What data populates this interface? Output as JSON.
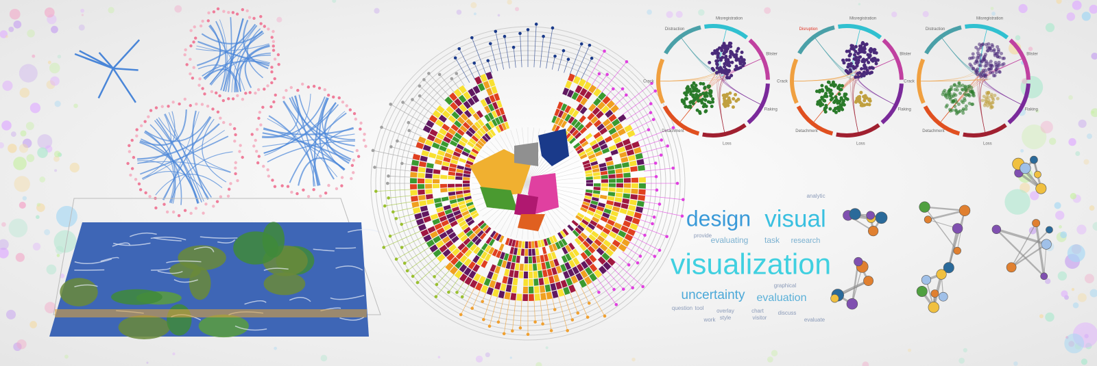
{
  "word_cloud": {
    "words": [
      "analytic",
      "design",
      "visual",
      "provide",
      "evaluating",
      "task",
      "research",
      "visualization",
      "graphical",
      "uncertainty",
      "evaluation",
      "question",
      "tool",
      "overlay",
      "chart",
      "discuss",
      "work",
      "style",
      "visitor",
      "evaluate"
    ]
  },
  "chord_diagrams": [
    {
      "labels": [
        "Distraction",
        "Misregistration",
        "Blister",
        "Flaking",
        "Loss",
        "Detachment",
        "Crack"
      ]
    },
    {
      "labels": [
        "Disruption",
        "Misregistration",
        "Blister",
        "Flaking",
        "Loss",
        "Detachment",
        "Crack"
      ]
    },
    {
      "labels": [
        "Distraction",
        "Misregistration",
        "Blister",
        "Flaking",
        "Loss",
        "Detachment",
        "Crack"
      ]
    }
  ]
}
